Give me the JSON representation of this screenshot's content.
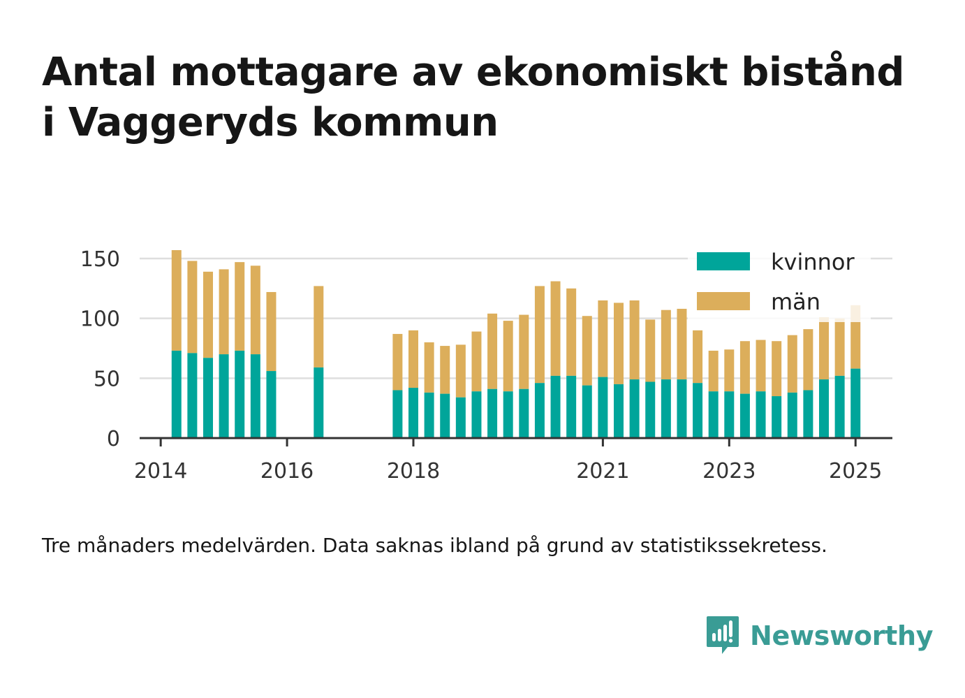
{
  "title_line1": "Antal mottagare av ekonomiskt bistånd",
  "title_line2": "i Vaggeryds kommun",
  "note": "Tre månaders medelvärden. Data saknas ibland på grund av statistikssekretess.",
  "brand": {
    "name": "Newsworthy",
    "icon": "newsworthy-logo-icon",
    "color": "#3a9c95"
  },
  "chart_data": {
    "type": "bar",
    "stacked": true,
    "x_label_ticks": [
      "2014",
      "2016",
      "2018",
      "2021",
      "2023",
      "2025"
    ],
    "x_tick_dates": [
      "2014-01",
      "2016-01",
      "2018-01",
      "2021-01",
      "2023-01",
      "2025-01"
    ],
    "x_range": [
      "2013-09",
      "2025-08"
    ],
    "ylim": [
      0,
      150
    ],
    "y_ticks": [
      0,
      50,
      100,
      150
    ],
    "grid": true,
    "legend_position": "top-right",
    "series": [
      {
        "name": "kvinnor",
        "color": "#00a59a"
      },
      {
        "name": "män",
        "color": "#dcae5b"
      }
    ],
    "bars": [
      {
        "date": "2014-04",
        "kvinnor": 73,
        "män": 84
      },
      {
        "date": "2014-07",
        "kvinnor": 71,
        "män": 77
      },
      {
        "date": "2014-10",
        "kvinnor": 67,
        "män": 72
      },
      {
        "date": "2015-01",
        "kvinnor": 70,
        "män": 71
      },
      {
        "date": "2015-04",
        "kvinnor": 73,
        "män": 74
      },
      {
        "date": "2015-07",
        "kvinnor": 70,
        "män": 74
      },
      {
        "date": "2015-10",
        "kvinnor": 56,
        "män": 66
      },
      {
        "date": "2016-07",
        "kvinnor": 59,
        "män": 68
      },
      {
        "date": "2017-10",
        "kvinnor": 40,
        "män": 47
      },
      {
        "date": "2018-01",
        "kvinnor": 42,
        "män": 48
      },
      {
        "date": "2018-04",
        "kvinnor": 38,
        "män": 42
      },
      {
        "date": "2018-07",
        "kvinnor": 37,
        "män": 40
      },
      {
        "date": "2018-10",
        "kvinnor": 34,
        "män": 44
      },
      {
        "date": "2019-01",
        "kvinnor": 39,
        "män": 50
      },
      {
        "date": "2019-04",
        "kvinnor": 41,
        "män": 63
      },
      {
        "date": "2019-07",
        "kvinnor": 39,
        "män": 59
      },
      {
        "date": "2019-10",
        "kvinnor": 41,
        "män": 62
      },
      {
        "date": "2020-01",
        "kvinnor": 46,
        "män": 81
      },
      {
        "date": "2020-04",
        "kvinnor": 52,
        "män": 79
      },
      {
        "date": "2020-07",
        "kvinnor": 52,
        "män": 73
      },
      {
        "date": "2020-10",
        "kvinnor": 44,
        "män": 58
      },
      {
        "date": "2021-01",
        "kvinnor": 51,
        "män": 64
      },
      {
        "date": "2021-04",
        "kvinnor": 45,
        "män": 68
      },
      {
        "date": "2021-07",
        "kvinnor": 49,
        "män": 66
      },
      {
        "date": "2021-10",
        "kvinnor": 47,
        "män": 52
      },
      {
        "date": "2022-01",
        "kvinnor": 49,
        "män": 58
      },
      {
        "date": "2022-04",
        "kvinnor": 49,
        "män": 59
      },
      {
        "date": "2022-07",
        "kvinnor": 46,
        "män": 44
      },
      {
        "date": "2022-10",
        "kvinnor": 39,
        "män": 34
      },
      {
        "date": "2023-01",
        "kvinnor": 39,
        "män": 35
      },
      {
        "date": "2023-04",
        "kvinnor": 37,
        "män": 44
      },
      {
        "date": "2023-07",
        "kvinnor": 39,
        "män": 43
      },
      {
        "date": "2023-10",
        "kvinnor": 35,
        "män": 46
      },
      {
        "date": "2024-01",
        "kvinnor": 38,
        "män": 48
      },
      {
        "date": "2024-04",
        "kvinnor": 40,
        "män": 51
      },
      {
        "date": "2024-07",
        "kvinnor": 49,
        "män": 52
      },
      {
        "date": "2024-10",
        "kvinnor": 52,
        "män": 48
      },
      {
        "date": "2025-01",
        "kvinnor": 58,
        "män": 53
      }
    ]
  }
}
